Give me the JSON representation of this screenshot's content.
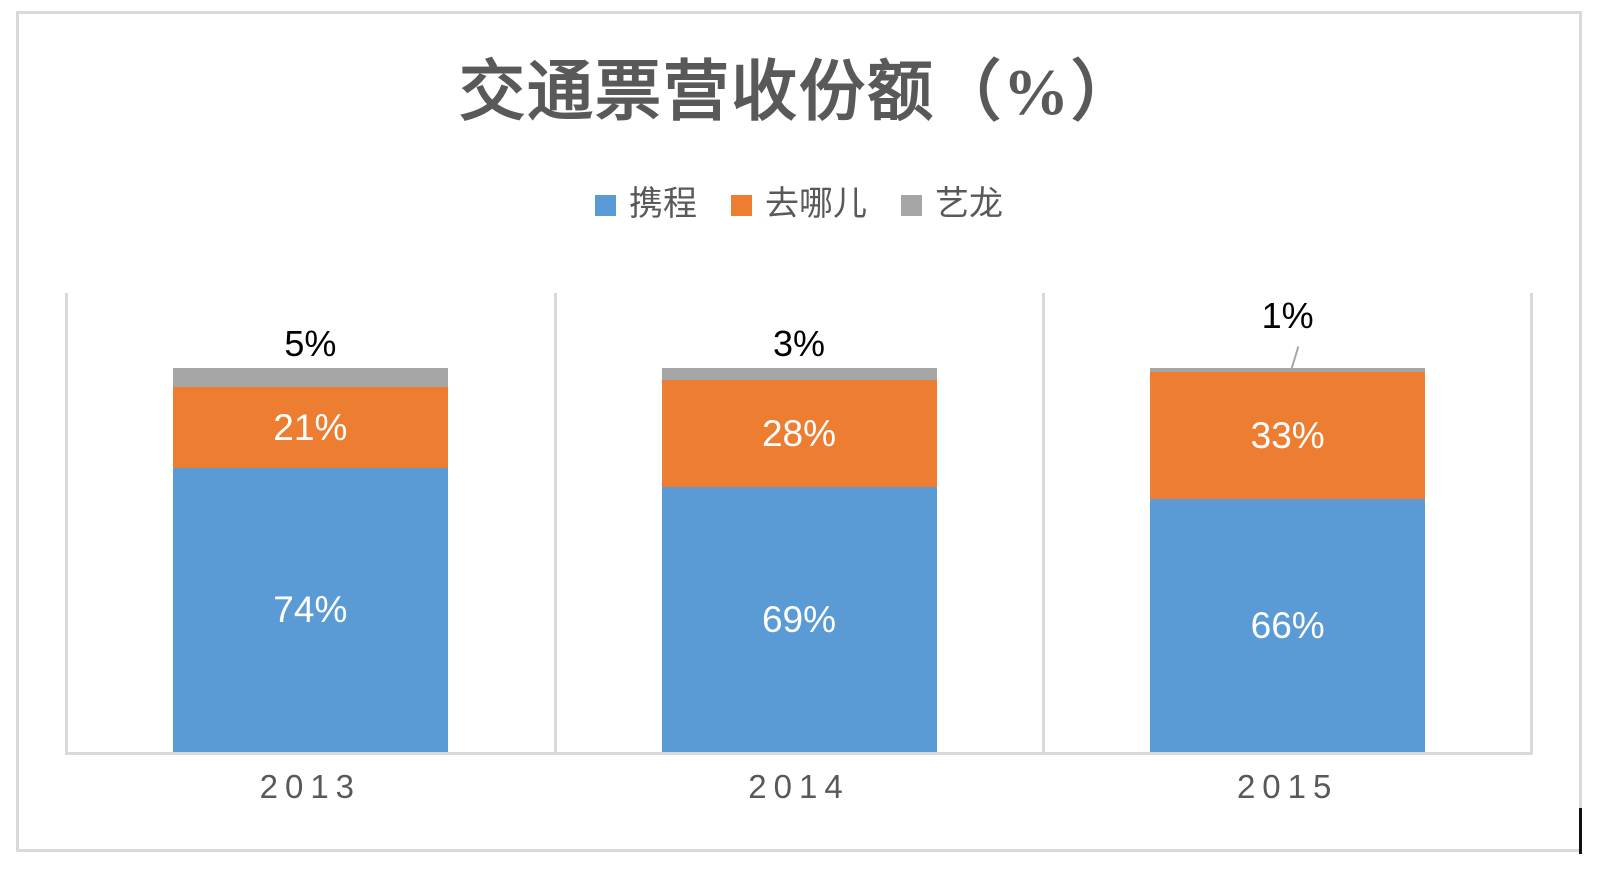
{
  "chart_data": {
    "type": "bar",
    "stacked": true,
    "percent_stacked": true,
    "title": "交通票营收份额（%）",
    "categories": [
      "2013",
      "2014",
      "2015"
    ],
    "series": [
      {
        "name": "携程",
        "color": "#5B9BD5",
        "values": [
          74,
          69,
          66
        ],
        "labels": [
          "74%",
          "69%",
          "66%"
        ],
        "label_color": "#FFFFFF",
        "label_placement": "inside"
      },
      {
        "name": "去哪儿",
        "color": "#ED7D31",
        "values": [
          21,
          28,
          33
        ],
        "labels": [
          "21%",
          "28%",
          "33%"
        ],
        "label_color": "#FFFFFF",
        "label_placement": "inside"
      },
      {
        "name": "艺龙",
        "color": "#A6A6A6",
        "values": [
          5,
          3,
          1
        ],
        "labels": [
          "5%",
          "3%",
          "1%"
        ],
        "label_color": "#000000",
        "label_placement": "outside-top",
        "callout": [
          false,
          false,
          true
        ]
      }
    ],
    "ylim": [
      0,
      100
    ],
    "legend_position": "top",
    "grid": "vertical-category-separators",
    "axis_color": "#D9D9D9",
    "text_color": "#595959",
    "background": "#FFFFFF"
  },
  "artifacts": {
    "text_cursor_visible": true
  }
}
